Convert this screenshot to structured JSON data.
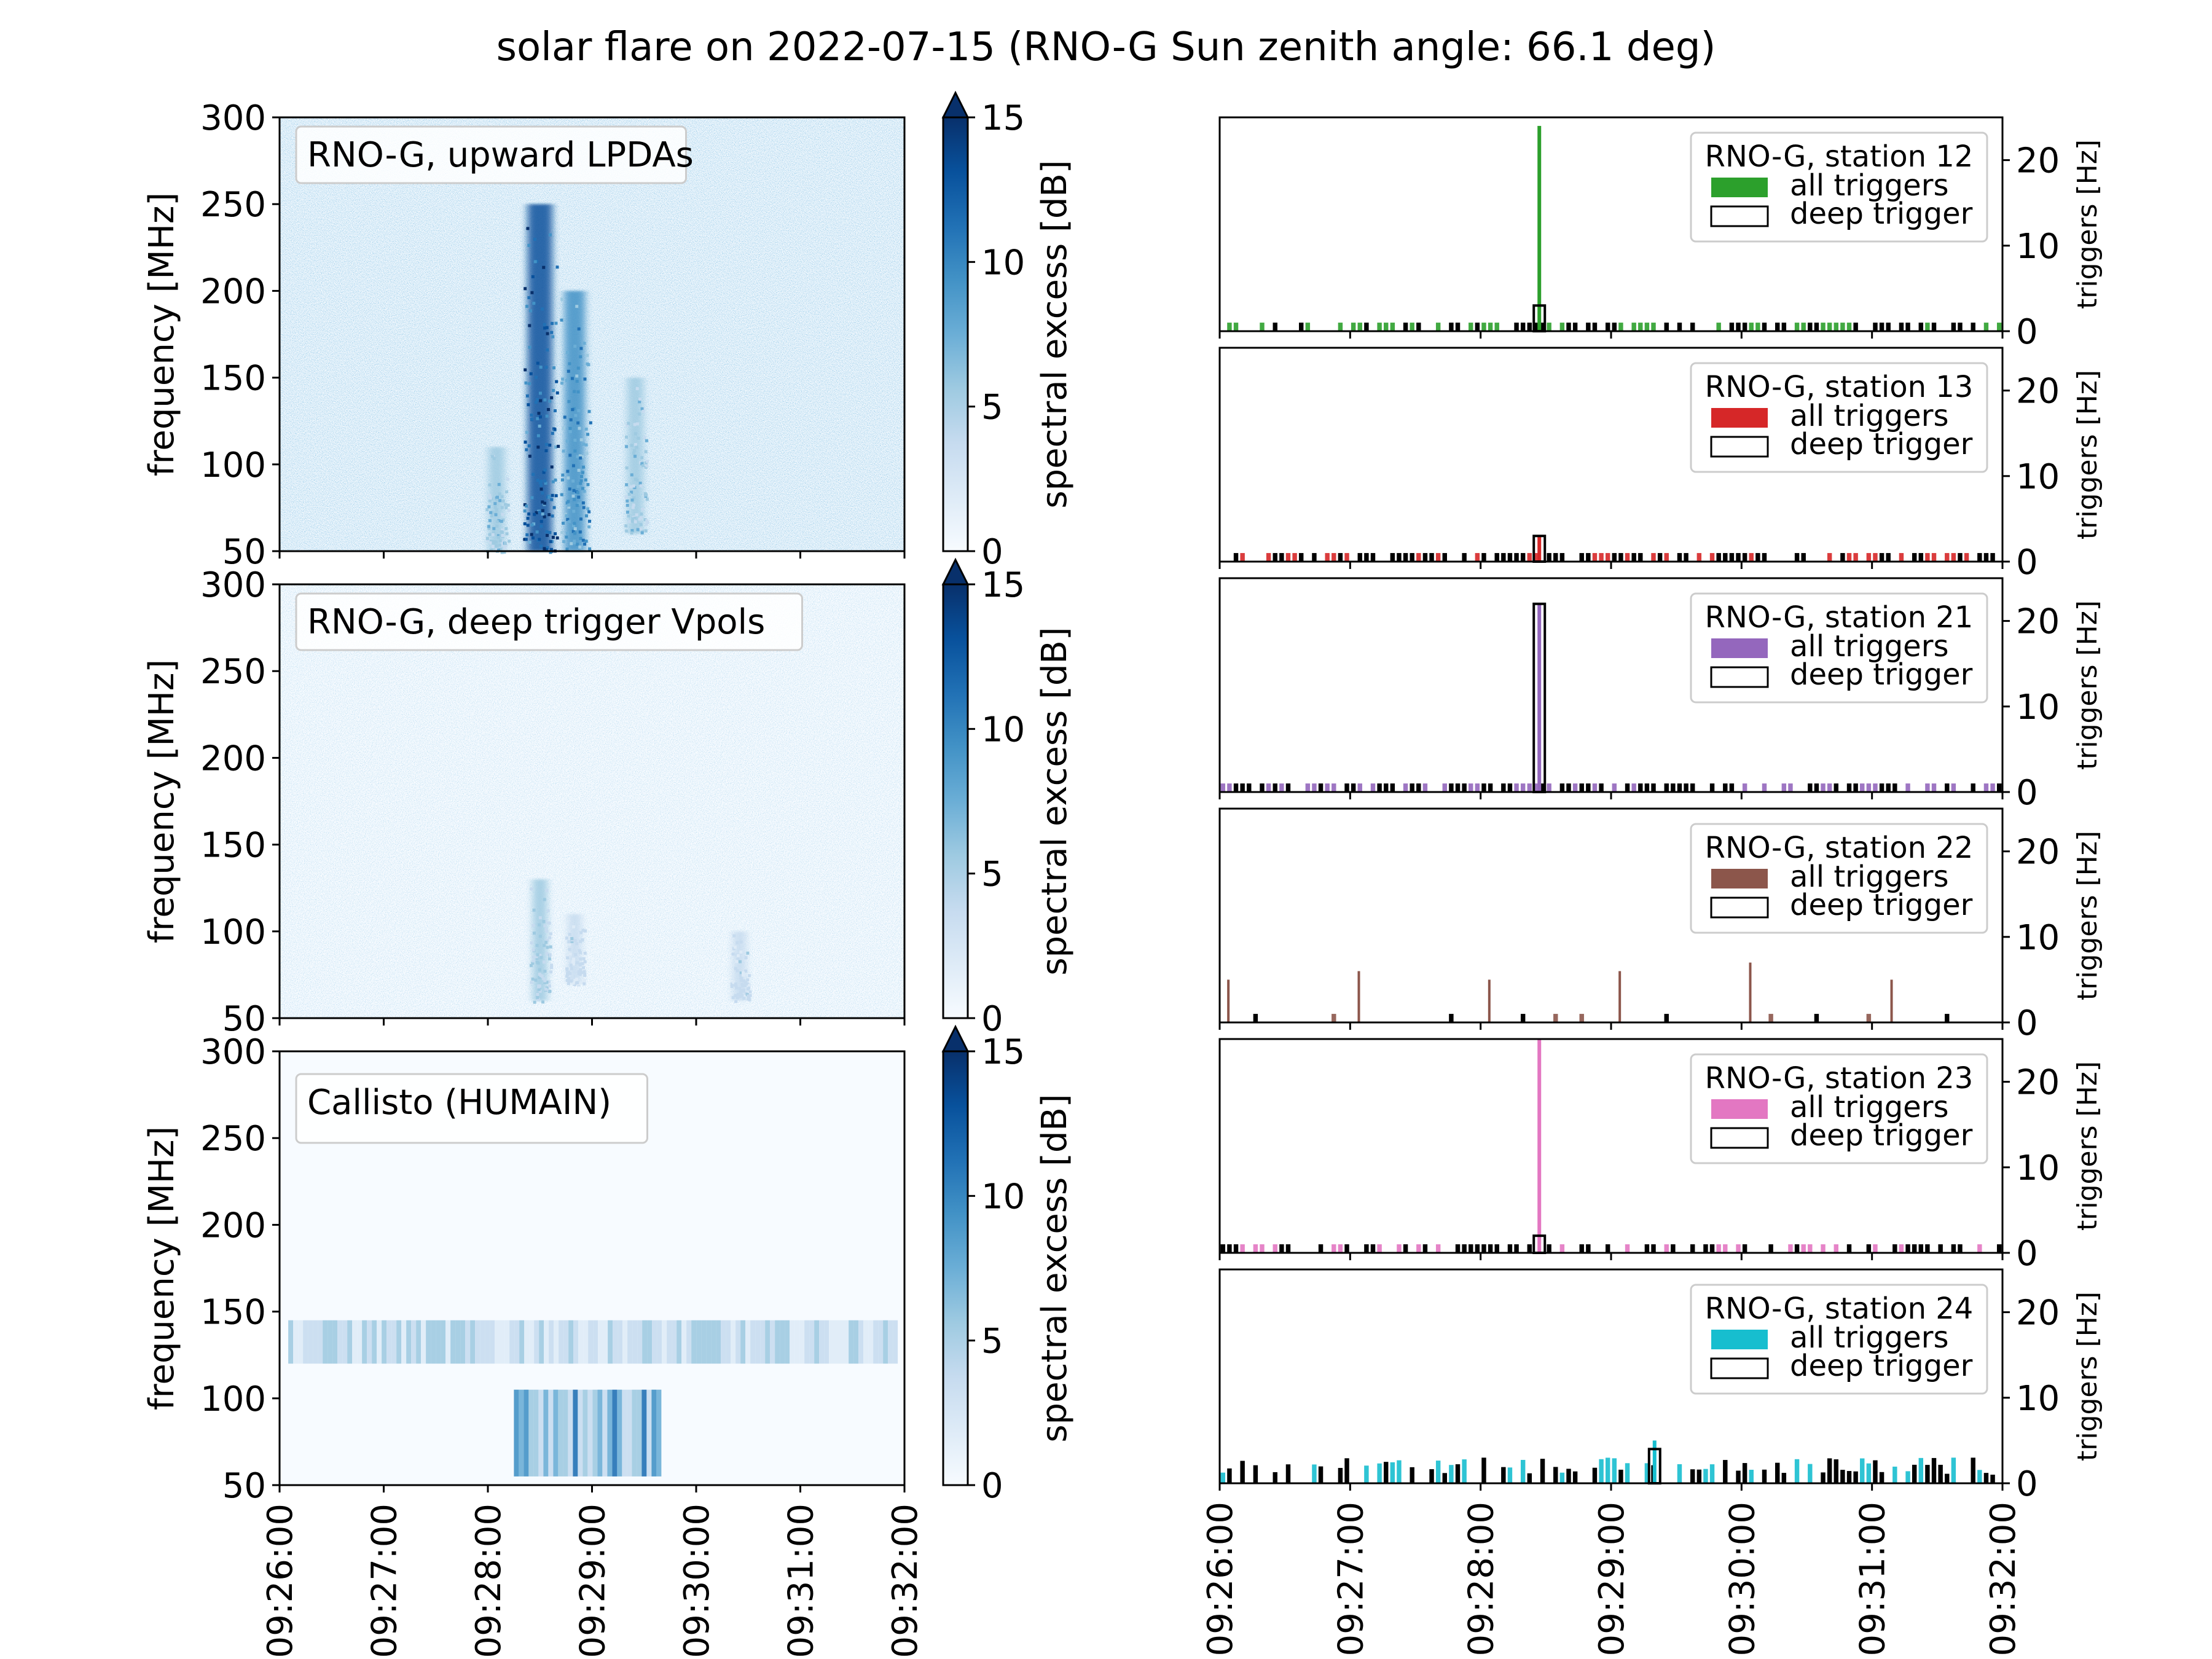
{
  "figure_title": "solar flare on 2022-07-15 (RNO-G Sun zenith angle: 66.1 deg)",
  "time_ticks": [
    "09:26:00",
    "09:27:00",
    "09:28:00",
    "09:29:00",
    "09:30:00",
    "09:31:00",
    "09:32:00"
  ],
  "colors": {
    "station_12": "#2ca02c",
    "station_13": "#d62728",
    "station_21": "#9467bd",
    "station_22": "#8c564b",
    "station_23": "#e377c2",
    "station_24": "#17becf",
    "colormap": "Blues"
  },
  "chart_data": [
    {
      "type": "heatmap",
      "label": "RNO-G, upward LPDAs",
      "ylabel": "frequency [MHz]",
      "yticks": [
        50,
        100,
        150,
        200,
        250,
        300
      ],
      "ylim": [
        50,
        300
      ],
      "xlim": [
        "09:26:00",
        "09:32:00"
      ],
      "colorbar": {
        "label": "spectral excess [dB]",
        "ticks": [
          0,
          5,
          10,
          15
        ],
        "range": [
          0,
          15
        ],
        "extend": "max"
      },
      "features": [
        {
          "time": "09:28:05",
          "freq": [
            50,
            110
          ],
          "level": 6
        },
        {
          "time": "09:28:30",
          "freq": [
            50,
            250
          ],
          "level": 13
        },
        {
          "time": "09:28:50",
          "freq": [
            50,
            200
          ],
          "level": 10
        },
        {
          "time": "09:29:25",
          "freq": [
            60,
            150
          ],
          "level": 6
        }
      ]
    },
    {
      "type": "heatmap",
      "label": "RNO-G, deep trigger Vpols",
      "ylabel": "frequency [MHz]",
      "yticks": [
        50,
        100,
        150,
        200,
        250,
        300
      ],
      "ylim": [
        50,
        300
      ],
      "xlim": [
        "09:26:00",
        "09:32:00"
      ],
      "colorbar": {
        "label": "spectral excess [dB]",
        "ticks": [
          0,
          5,
          10,
          15
        ],
        "range": [
          0,
          15
        ],
        "extend": "max"
      },
      "features": [
        {
          "time": "09:28:30",
          "freq": [
            60,
            130
          ],
          "level": 5
        },
        {
          "time": "09:28:50",
          "freq": [
            70,
            110
          ],
          "level": 4
        },
        {
          "time": "09:30:25",
          "freq": [
            60,
            100
          ],
          "level": 4
        }
      ]
    },
    {
      "type": "heatmap",
      "label": "Callisto (HUMAIN)",
      "ylabel": "frequency [MHz]",
      "yticks": [
        50,
        100,
        150,
        200,
        250,
        300
      ],
      "ylim": [
        50,
        300
      ],
      "xlim": [
        "09:26:00",
        "09:32:00"
      ],
      "colorbar": {
        "label": "spectral excess [dB]",
        "ticks": [
          0,
          5,
          10,
          15
        ],
        "range": [
          0,
          15
        ],
        "extend": "max"
      },
      "features": [
        {
          "time_range": [
            "09:28:15",
            "09:29:40"
          ],
          "freq": [
            55,
            105
          ],
          "level": 12
        },
        {
          "time_range": [
            "09:26:05",
            "09:31:55"
          ],
          "freq": [
            120,
            145
          ],
          "level": 6
        }
      ]
    },
    {
      "type": "bar",
      "legend_title": "RNO-G, station 12",
      "legend": [
        "all triggers",
        "deep trigger"
      ],
      "legend_position": "top-right",
      "ylabel": "triggers [Hz]",
      "yticks": [
        0,
        10,
        20
      ],
      "ylim": [
        0,
        25
      ],
      "xlim": [
        "09:26:00",
        "09:32:00"
      ],
      "peak": {
        "time": "09:28:27",
        "all_triggers": 24,
        "deep_trigger": 3
      }
    },
    {
      "type": "bar",
      "legend_title": "RNO-G, station 13",
      "legend": [
        "all triggers",
        "deep trigger"
      ],
      "legend_position": "top-right",
      "ylabel": "triggers [Hz]",
      "yticks": [
        0,
        10,
        20
      ],
      "ylim": [
        0,
        25
      ],
      "xlim": [
        "09:26:00",
        "09:32:00"
      ],
      "peak": {
        "time": "09:28:27",
        "all_triggers": 3,
        "deep_trigger": 3
      }
    },
    {
      "type": "bar",
      "legend_title": "RNO-G, station 21",
      "legend": [
        "all triggers",
        "deep trigger"
      ],
      "legend_position": "top-right",
      "ylabel": "triggers [Hz]",
      "yticks": [
        0,
        10,
        20
      ],
      "ylim": [
        0,
        25
      ],
      "xlim": [
        "09:26:00",
        "09:32:00"
      ],
      "peak": {
        "time": "09:28:27",
        "all_triggers": 22,
        "deep_trigger": 22
      }
    },
    {
      "type": "bar",
      "legend_title": "RNO-G, station 22",
      "legend": [
        "all triggers",
        "deep trigger"
      ],
      "legend_position": "top-right",
      "ylabel": "triggers [Hz]",
      "yticks": [
        0,
        10,
        20
      ],
      "ylim": [
        0,
        25
      ],
      "xlim": [
        "09:26:00",
        "09:32:00"
      ],
      "spikes": [
        {
          "time": "09:26:04",
          "all_triggers": 5
        },
        {
          "time": "09:27:04",
          "all_triggers": 6
        },
        {
          "time": "09:28:04",
          "all_triggers": 5
        },
        {
          "time": "09:29:04",
          "all_triggers": 6
        },
        {
          "time": "09:30:04",
          "all_triggers": 7
        },
        {
          "time": "09:31:09",
          "all_triggers": 5
        }
      ]
    },
    {
      "type": "bar",
      "legend_title": "RNO-G, station 23",
      "legend": [
        "all triggers",
        "deep trigger"
      ],
      "legend_position": "top-right",
      "ylabel": "triggers [Hz]",
      "yticks": [
        0,
        10,
        20
      ],
      "ylim": [
        0,
        25
      ],
      "xlim": [
        "09:26:00",
        "09:32:00"
      ],
      "peak": {
        "time": "09:28:27",
        "all_triggers": 25,
        "deep_trigger": 2
      }
    },
    {
      "type": "bar",
      "legend_title": "RNO-G, station 24",
      "legend": [
        "all triggers",
        "deep trigger"
      ],
      "legend_position": "top-right",
      "ylabel": "triggers [Hz]",
      "yticks": [
        0,
        10,
        20
      ],
      "ylim": [
        0,
        25
      ],
      "xlim": [
        "09:26:00",
        "09:32:00"
      ],
      "peak": {
        "time": "09:29:20",
        "all_triggers": 5,
        "deep_trigger": 4
      }
    }
  ]
}
